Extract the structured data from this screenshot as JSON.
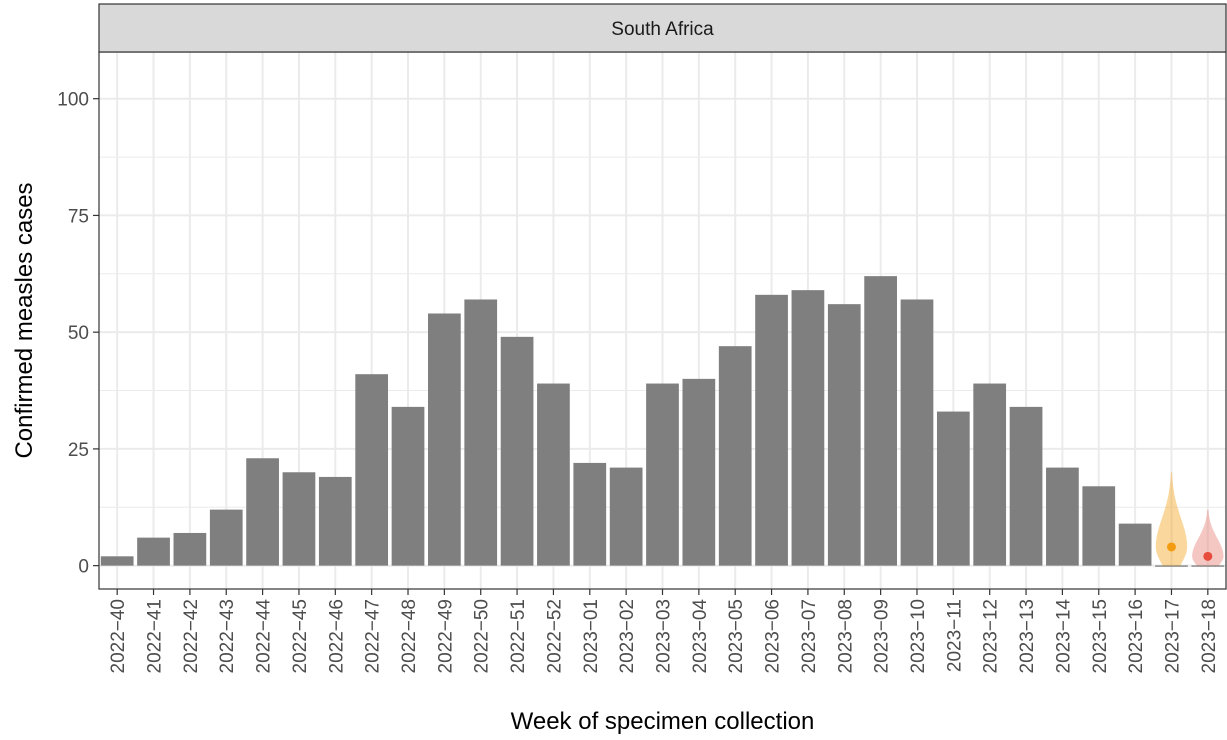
{
  "chart_data": {
    "type": "bar",
    "facet": "South Africa",
    "xlabel": "Week of specimen collection",
    "ylabel": "Confirmed measles cases",
    "ylim": [
      -5,
      110
    ],
    "yticks": [
      0,
      25,
      50,
      75,
      100
    ],
    "ytick_labels": [
      "0",
      "25",
      "50",
      "75",
      "100"
    ],
    "grid": true,
    "legend": "none",
    "categories": [
      "2022−40",
      "2022−41",
      "2022−42",
      "2022−43",
      "2022−44",
      "2022−45",
      "2022−46",
      "2022−47",
      "2022−48",
      "2022−49",
      "2022−50",
      "2022−51",
      "2022−52",
      "2023−01",
      "2023−02",
      "2023−03",
      "2023−04",
      "2023−05",
      "2023−06",
      "2023−07",
      "2023−08",
      "2023−09",
      "2023−10",
      "2023−11",
      "2023−12",
      "2023−13",
      "2023−14",
      "2023−15",
      "2023−16",
      "2023−17",
      "2023−18"
    ],
    "values": [
      2,
      6,
      7,
      12,
      23,
      20,
      19,
      41,
      34,
      54,
      57,
      49,
      39,
      22,
      21,
      39,
      40,
      47,
      58,
      59,
      56,
      62,
      57,
      33,
      39,
      34,
      21,
      17,
      9,
      0,
      0
    ],
    "nowcast": [
      {
        "category": "2023−17",
        "median": 4,
        "lower": 0,
        "upper": 20,
        "color": "#f5a623",
        "point_color": "#f39c12"
      },
      {
        "category": "2023−18",
        "median": 2,
        "lower": 0,
        "upper": 12,
        "color": "#e8827a",
        "point_color": "#e74c3c"
      }
    ],
    "colors": {
      "bar": "#7f7f7f",
      "grid": "#ebebeb",
      "strip_fill": "#d9d9d9",
      "frame": "#333333"
    }
  }
}
